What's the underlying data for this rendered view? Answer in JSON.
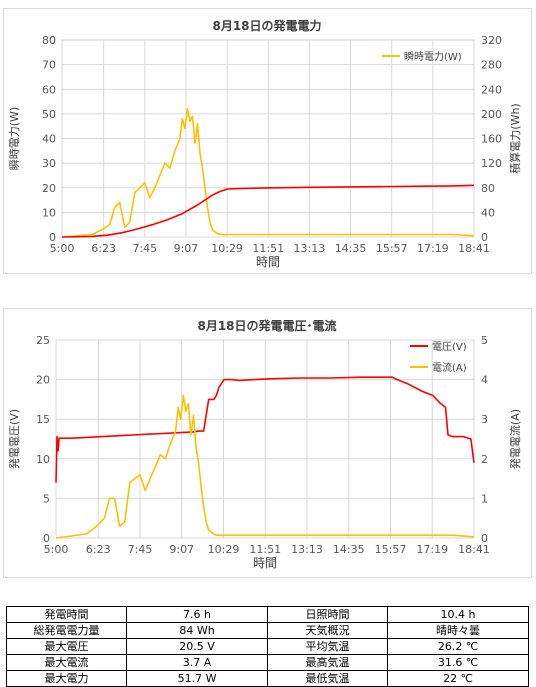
{
  "chart_data": [
    {
      "type": "line",
      "title": "8月18日の発電電力",
      "xlabel": "時間",
      "ylabel": "瞬時電力(W)",
      "y2label": "積算電力(Wh)",
      "x_ticks": [
        "5:00",
        "6:23",
        "7:45",
        "9:07",
        "10:29",
        "11:51",
        "13:13",
        "14:35",
        "15:57",
        "17:19",
        "18:41"
      ],
      "xlim": [
        "5:00",
        "18:41"
      ],
      "ylim": [
        0,
        80
      ],
      "y_ticks": [
        0,
        10,
        20,
        30,
        40,
        50,
        60,
        70,
        80
      ],
      "y2lim": [
        0,
        320
      ],
      "y2_ticks": [
        0,
        40,
        80,
        120,
        160,
        200,
        240,
        280,
        320
      ],
      "grid": true,
      "legend_position": "top-right",
      "series": [
        {
          "name": "瞬時電力(W)",
          "axis": "left",
          "color": "#ffc000",
          "x": [
            "5:00",
            "5:30",
            "6:00",
            "6:20",
            "6:35",
            "6:45",
            "6:55",
            "7:05",
            "7:15",
            "7:25",
            "7:35",
            "7:45",
            "7:55",
            "8:05",
            "8:15",
            "8:25",
            "8:35",
            "8:45",
            "8:55",
            "9:00",
            "9:05",
            "9:10",
            "9:15",
            "9:20",
            "9:25",
            "9:30",
            "9:35",
            "9:40",
            "9:45",
            "9:50",
            "9:55",
            "10:00",
            "10:05",
            "10:10",
            "10:15",
            "10:20",
            "10:25",
            "10:30",
            "11:00",
            "12:00",
            "13:00",
            "14:00",
            "15:00",
            "16:00",
            "17:00",
            "18:00",
            "18:41"
          ],
          "y": [
            0,
            0.5,
            1,
            3,
            5,
            12,
            14,
            4,
            6,
            18,
            20,
            22,
            16,
            20,
            25,
            30,
            28,
            35,
            40,
            48,
            44,
            52,
            47,
            49,
            38,
            46,
            34,
            28,
            20,
            12,
            6,
            3,
            2,
            1.5,
            1,
            1,
            0.8,
            1,
            1,
            1,
            1,
            1,
            1,
            1,
            1,
            1,
            0.5
          ]
        },
        {
          "name": "積算電力(Wh)",
          "axis": "right",
          "color": "#ff0000",
          "x": [
            "5:00",
            "6:00",
            "6:30",
            "7:00",
            "7:30",
            "8:00",
            "8:30",
            "9:00",
            "9:30",
            "10:00",
            "10:15",
            "10:30",
            "11:00",
            "12:00",
            "13:00",
            "14:00",
            "15:00",
            "16:00",
            "17:00",
            "18:00",
            "18:41"
          ],
          "y": [
            0,
            1,
            3,
            7,
            13,
            20,
            28,
            38,
            52,
            68,
            74,
            78,
            79,
            80,
            80.5,
            81,
            81.5,
            82,
            82.5,
            83,
            84
          ]
        }
      ]
    },
    {
      "type": "line",
      "title": "8月18日の発電電圧･電流",
      "xlabel": "時間",
      "ylabel": "発電電圧(V)",
      "y2label": "発電電流(A)",
      "x_ticks": [
        "5:00",
        "6:23",
        "7:45",
        "9:07",
        "10:29",
        "11:51",
        "13:13",
        "14:35",
        "15:57",
        "17:19",
        "18:41"
      ],
      "xlim": [
        "5:00",
        "18:41"
      ],
      "ylim": [
        0,
        25
      ],
      "y_ticks": [
        0,
        5,
        10,
        15,
        20,
        25
      ],
      "y2lim": [
        0,
        5
      ],
      "y2_ticks": [
        0,
        1,
        2,
        3,
        4,
        5
      ],
      "grid": true,
      "legend_position": "top-right",
      "series": [
        {
          "name": "電圧(V)",
          "axis": "left",
          "color": "#ff0000",
          "x": [
            "5:00",
            "5:02",
            "5:04",
            "5:06",
            "5:30",
            "6:00",
            "6:30",
            "7:00",
            "7:30",
            "8:00",
            "8:30",
            "9:00",
            "9:30",
            "9:40",
            "9:50",
            "10:00",
            "10:10",
            "10:15",
            "10:20",
            "10:30",
            "10:45",
            "11:00",
            "11:30",
            "12:00",
            "13:00",
            "14:00",
            "15:00",
            "16:00",
            "16:10",
            "16:30",
            "17:00",
            "17:20",
            "17:35",
            "17:45",
            "17:50",
            "18:00",
            "18:20",
            "18:35",
            "18:41"
          ],
          "y": [
            7,
            12.8,
            11,
            12.6,
            12.6,
            12.7,
            12.8,
            12.9,
            13,
            13.1,
            13.2,
            13.3,
            13.4,
            13.5,
            13.5,
            17.5,
            17.5,
            18,
            19,
            20,
            20,
            19.9,
            20,
            20.1,
            20.2,
            20.2,
            20.3,
            20.3,
            20,
            19.5,
            18.5,
            18,
            17,
            16.5,
            13,
            12.8,
            12.8,
            12.5,
            9.5
          ]
        },
        {
          "name": "電流(A)",
          "axis": "right",
          "color": "#ffc000",
          "x": [
            "5:00",
            "5:30",
            "6:00",
            "6:20",
            "6:35",
            "6:45",
            "6:55",
            "7:05",
            "7:15",
            "7:25",
            "7:35",
            "7:45",
            "7:55",
            "8:05",
            "8:15",
            "8:25",
            "8:35",
            "8:45",
            "8:55",
            "9:00",
            "9:05",
            "9:10",
            "9:15",
            "9:20",
            "9:25",
            "9:30",
            "9:35",
            "9:40",
            "9:45",
            "9:50",
            "9:55",
            "10:00",
            "10:05",
            "10:10",
            "10:15",
            "10:20",
            "10:25",
            "10:30",
            "11:00",
            "12:00",
            "13:00",
            "14:00",
            "15:00",
            "16:00",
            "17:00",
            "18:00",
            "18:41"
          ],
          "y": [
            0,
            0.05,
            0.1,
            0.3,
            0.5,
            1,
            1,
            0.3,
            0.4,
            1.4,
            1.5,
            1.6,
            1.2,
            1.5,
            1.8,
            2.1,
            2,
            2.4,
            2.7,
            3.3,
            3,
            3.6,
            3.2,
            3.4,
            2.6,
            3.1,
            2.3,
            1.9,
            1.3,
            0.8,
            0.4,
            0.2,
            0.15,
            0.1,
            0.07,
            0.07,
            0.06,
            0.07,
            0.07,
            0.07,
            0.07,
            0.07,
            0.07,
            0.07,
            0.07,
            0.07,
            0.03
          ]
        }
      ]
    }
  ],
  "summary": {
    "rows": [
      {
        "l1": "発電時間",
        "v1": "7.6 h",
        "l2": "日照時間",
        "v2": "10.4 h"
      },
      {
        "l1": "総発電電力量",
        "v1": "84 Wh",
        "l2": "天気概況",
        "v2": "晴時々曇"
      },
      {
        "l1": "最大電圧",
        "v1": "20.5 V",
        "l2": "平均気温",
        "v2": "26.2 ℃"
      },
      {
        "l1": "最大電流",
        "v1": "3.7 A",
        "l2": "最高気温",
        "v2": "31.6 ℃"
      },
      {
        "l1": "最大電力",
        "v1": "51.7 W",
        "l2": "最低気温",
        "v2": "22 ℃"
      }
    ]
  }
}
